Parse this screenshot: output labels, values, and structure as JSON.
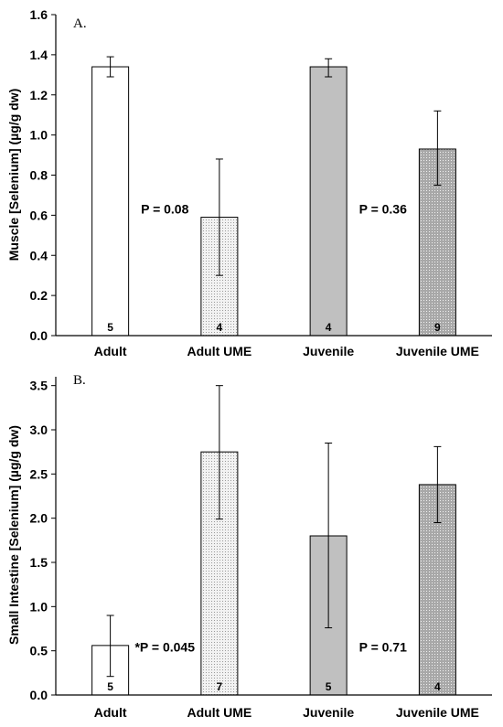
{
  "chart_data": [
    {
      "type": "bar",
      "panel_label": "A.",
      "ylabel": "Muscle [Selenium] (µg/g dw)",
      "categories": [
        "Adult",
        "Adult UME",
        "Juvenile",
        "Juvenile UME"
      ],
      "values": [
        1.34,
        0.59,
        1.34,
        0.93
      ],
      "error_low": [
        1.29,
        0.3,
        1.29,
        0.75
      ],
      "error_high": [
        1.39,
        0.88,
        1.38,
        1.12
      ],
      "n_labels": [
        "5",
        "4",
        "4",
        "9"
      ],
      "yticks": [
        "0.0",
        "0.2",
        "0.4",
        "0.6",
        "0.8",
        "1.0",
        "1.2",
        "1.4",
        "1.6"
      ],
      "ylim": [
        0,
        1.6
      ],
      "bar_fills": [
        "#ffffff",
        "dots-light",
        "#c0c0c0",
        "dots-dark"
      ],
      "annotations": [
        {
          "text": "P = 0.08",
          "x": 0.5,
          "y": 0.6
        },
        {
          "text": "P = 0.36",
          "x": 2.5,
          "y": 0.6
        }
      ]
    },
    {
      "type": "bar",
      "panel_label": "B.",
      "ylabel": "Small Intestine [Selenium] (µg/g dw)",
      "categories": [
        "Adult",
        "Adult UME",
        "Juvenile",
        "Juvenile UME"
      ],
      "values": [
        0.56,
        2.75,
        1.8,
        2.38
      ],
      "error_low": [
        0.21,
        1.99,
        0.76,
        1.95
      ],
      "error_high": [
        0.9,
        3.5,
        2.85,
        2.81
      ],
      "n_labels": [
        "5",
        "7",
        "5",
        "4"
      ],
      "yticks": [
        "0.0",
        "0.5",
        "1.0",
        "1.5",
        "2.0",
        "2.5",
        "3.0",
        "3.5"
      ],
      "ylim": [
        0,
        3.6
      ],
      "bar_fills": [
        "#ffffff",
        "dots-light",
        "#c0c0c0",
        "dots-dark"
      ],
      "annotations": [
        {
          "text": "*P = 0.045",
          "x": 0.5,
          "y": 0.47
        },
        {
          "text": "P = 0.71",
          "x": 2.5,
          "y": 0.47
        }
      ]
    }
  ]
}
